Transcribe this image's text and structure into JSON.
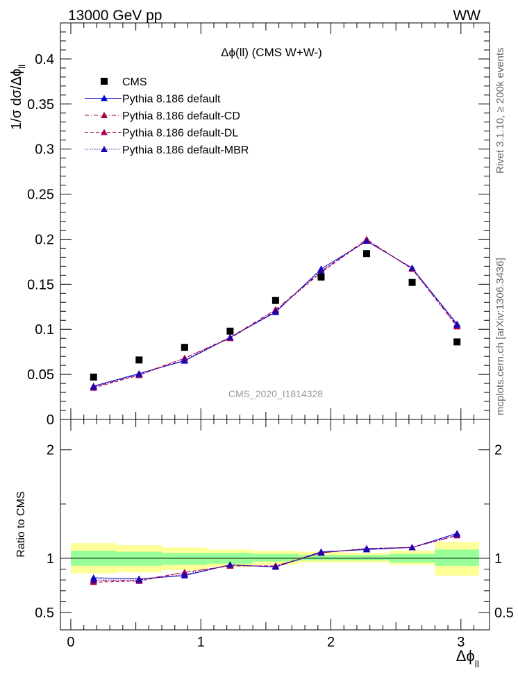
{
  "header": {
    "energy_label": "13000 GeV pp",
    "process_label": "WW"
  },
  "side_text": {
    "rivet": "Rivet 3.1.10, ≥ 200k events",
    "mcplots": "mcplots.cern.ch [arXiv:1306.3436]"
  },
  "chart_data": {
    "type": "scatter",
    "title": "Δϕ(ll) (CMS W+W-)",
    "analysis_label": "CMS_2020_I1814328",
    "xlabel": "Δϕ",
    "xlabel_sub": "ll",
    "ylabel": "1/σ dσ/Δϕ",
    "ylabel_sub": "ll",
    "ratio_ylabel": "Ratio to CMS",
    "xlim": [
      -0.08,
      3.22
    ],
    "ylim": [
      0,
      0.44
    ],
    "ratio_ylim": [
      0.34,
      2.28
    ],
    "x_ticks": [
      0,
      1,
      2,
      3
    ],
    "x_tick_labels": [
      "0",
      "1",
      "2",
      "3"
    ],
    "y_ticks": [
      0,
      0.05,
      0.1,
      0.15,
      0.2,
      0.25,
      0.3,
      0.35,
      0.4
    ],
    "y_tick_labels": [
      "0",
      "0.05",
      "0.1",
      "0.15",
      "0.2",
      "0.25",
      "0.3",
      "0.35",
      "0.4"
    ],
    "ratio_ticks": [
      0.5,
      1,
      2
    ],
    "ratio_tick_labels": [
      "0.5",
      "1",
      "2"
    ],
    "bin_edges": [
      0,
      0.35,
      0.7,
      1.05,
      1.4,
      1.75,
      2.1,
      2.45,
      2.8,
      3.14
    ],
    "x": [
      0.175,
      0.525,
      0.875,
      1.225,
      1.575,
      1.925,
      2.275,
      2.625,
      2.97
    ],
    "data": {
      "name": "CMS",
      "values": [
        0.047,
        0.066,
        0.08,
        0.098,
        0.132,
        0.158,
        0.184,
        0.152,
        0.086
      ]
    },
    "series": [
      {
        "name": "Pythia 8.186 default",
        "color": "#0000cc",
        "dash": "solid",
        "values": [
          0.037,
          0.051,
          0.065,
          0.091,
          0.119,
          0.167,
          0.198,
          0.168,
          0.106
        ],
        "ratio": [
          0.82,
          0.81,
          0.84,
          0.94,
          0.92,
          1.06,
          1.08,
          1.1,
          1.23
        ]
      },
      {
        "name": "Pythia 8.186 default-CD",
        "color": "#aa0044",
        "dash": "dashdot",
        "values": [
          0.036,
          0.05,
          0.068,
          0.091,
          0.122,
          0.164,
          0.2,
          0.167,
          0.104
        ],
        "ratio": [
          0.79,
          0.8,
          0.87,
          0.93,
          0.93,
          1.05,
          1.09,
          1.1,
          1.21
        ]
      },
      {
        "name": "Pythia 8.186 default-DL",
        "color": "#aa0055",
        "dash": "dashed",
        "values": [
          0.035,
          0.049,
          0.068,
          0.09,
          0.121,
          0.163,
          0.199,
          0.167,
          0.103
        ],
        "ratio": [
          0.78,
          0.79,
          0.87,
          0.93,
          0.93,
          1.05,
          1.09,
          1.1,
          1.21
        ]
      },
      {
        "name": "Pythia 8.186 default-MBR",
        "color": "#2200aa",
        "dash": "dotted",
        "values": [
          0.036,
          0.05,
          0.066,
          0.091,
          0.12,
          0.165,
          0.198,
          0.168,
          0.105
        ],
        "ratio": [
          0.8,
          0.8,
          0.85,
          0.94,
          0.92,
          1.05,
          1.09,
          1.1,
          1.22
        ]
      }
    ],
    "band_inner": [
      [
        0.93,
        1.07
      ],
      [
        0.93,
        1.06
      ],
      [
        0.94,
        1.05
      ],
      [
        0.95,
        1.05
      ],
      [
        0.97,
        1.04
      ],
      [
        0.98,
        1.03
      ],
      [
        0.98,
        1.03
      ],
      [
        0.96,
        1.04
      ],
      [
        0.93,
        1.08
      ]
    ],
    "band_outer": [
      [
        0.86,
        1.14
      ],
      [
        0.87,
        1.12
      ],
      [
        0.89,
        1.1
      ],
      [
        0.92,
        1.08
      ],
      [
        0.94,
        1.07
      ],
      [
        0.96,
        1.06
      ],
      [
        0.96,
        1.05
      ],
      [
        0.94,
        1.07
      ],
      [
        0.84,
        1.15
      ]
    ],
    "band_colors": {
      "inner": "#99ff99",
      "outer": "#ffff99"
    }
  }
}
